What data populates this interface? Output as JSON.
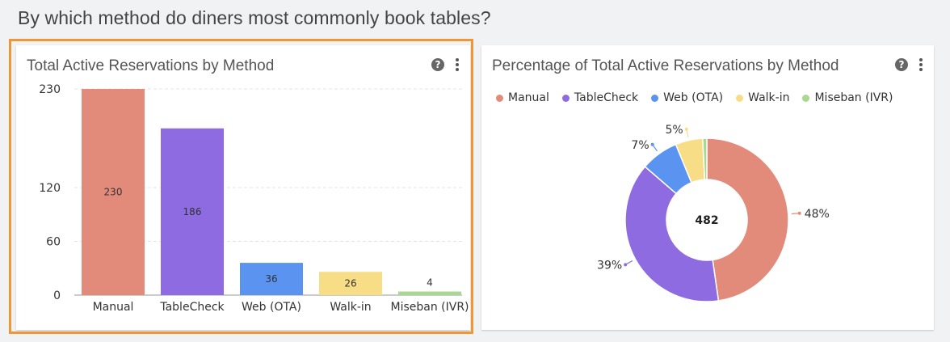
{
  "page": {
    "title": "By which method do diners most commonly book tables?"
  },
  "bar_card": {
    "title": "Total Active Reservations by Method",
    "help_icon": "question-circle-icon",
    "menu_icon": "kebab-menu-icon"
  },
  "pie_card": {
    "title": "Percentage of Total Active Reservations by Method",
    "help_icon": "question-circle-icon",
    "menu_icon": "kebab-menu-icon"
  },
  "colors": {
    "Manual": "#e38b7a",
    "TableCheck": "#8e6be0",
    "Web (OTA)": "#5b93f0",
    "Walk-in": "#f7de86",
    "Miseban (IVR)": "#a9d891",
    "selection": "#ef9736"
  },
  "chart_data": [
    {
      "type": "bar",
      "title": "Total Active Reservations by Method",
      "categories": [
        "Manual",
        "TableCheck",
        "Web (OTA)",
        "Walk-in",
        "Miseban (IVR)"
      ],
      "values": [
        230,
        186,
        36,
        26,
        4
      ],
      "yticks": [
        0,
        60,
        120,
        230
      ],
      "ylim": [
        0,
        230
      ],
      "grid": true,
      "data_labels": true
    },
    {
      "type": "pie",
      "title": "Percentage of Total Active Reservations by Method",
      "donut": true,
      "center_label": "482",
      "legend_position": "top",
      "categories": [
        "Manual",
        "TableCheck",
        "Web (OTA)",
        "Walk-in",
        "Miseban (IVR)"
      ],
      "values": [
        230,
        186,
        36,
        26,
        4
      ],
      "percent_labels": [
        "48%",
        "39%",
        "7%",
        "5%",
        ""
      ]
    }
  ]
}
